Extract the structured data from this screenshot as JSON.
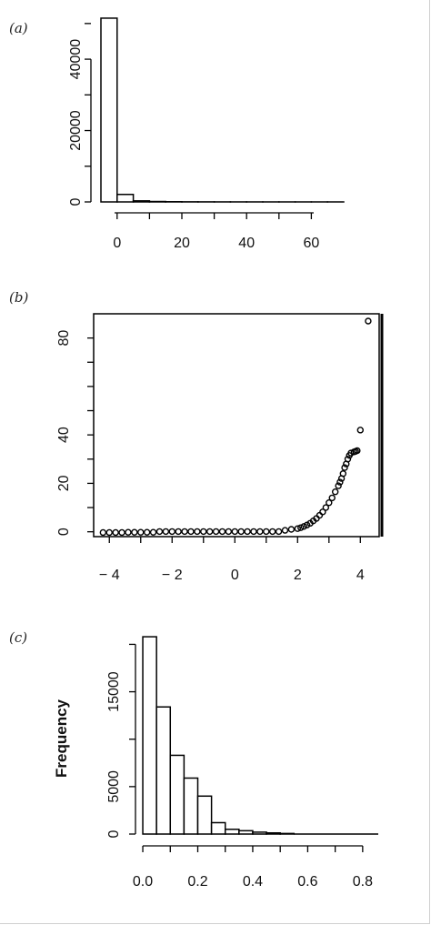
{
  "panels": [
    {
      "label": "(a)"
    },
    {
      "label": "(b)"
    },
    {
      "label": "(c)"
    }
  ],
  "chart_data": [
    {
      "type": "bar",
      "panel": "(a)",
      "title": "",
      "xlabel": "",
      "ylabel": "",
      "bin_edges": [
        -5,
        0,
        5,
        10,
        15,
        20,
        25,
        30,
        35,
        40,
        45,
        50,
        55,
        60,
        65,
        70
      ],
      "values": [
        51500,
        2100,
        300,
        120,
        60,
        30,
        20,
        10,
        8,
        5,
        3,
        2,
        1,
        1,
        1
      ],
      "xlim": [
        -5,
        70
      ],
      "ylim": [
        0,
        52000
      ],
      "xticks": [
        "0",
        "20",
        "40",
        "60"
      ],
      "xtick_values": [
        0,
        20,
        40,
        60
      ],
      "yticks": [
        "0",
        "20000",
        "40000"
      ],
      "ytick_values": [
        0,
        20000,
        40000
      ]
    },
    {
      "type": "scatter",
      "panel": "(b)",
      "title": "",
      "xlabel": "",
      "ylabel": "",
      "x": [
        -4.2,
        -4.0,
        -3.8,
        -3.6,
        -3.4,
        -3.2,
        -3.0,
        -2.8,
        -2.6,
        -2.4,
        -2.2,
        -2.0,
        -1.8,
        -1.6,
        -1.4,
        -1.2,
        -1.0,
        -0.8,
        -0.6,
        -0.4,
        -0.2,
        0.0,
        0.2,
        0.4,
        0.6,
        0.8,
        1.0,
        1.2,
        1.4,
        1.6,
        1.8,
        2.0,
        2.1,
        2.2,
        2.3,
        2.4,
        2.5,
        2.6,
        2.7,
        2.8,
        2.9,
        3.0,
        3.1,
        3.2,
        3.3,
        3.35,
        3.4,
        3.45,
        3.5,
        3.55,
        3.6,
        3.65,
        3.7,
        3.8,
        3.85,
        3.9,
        4.0,
        4.25
      ],
      "y": [
        -0.3,
        -0.3,
        -0.3,
        -0.3,
        -0.2,
        -0.2,
        -0.2,
        -0.2,
        -0.2,
        0.1,
        0.1,
        0.1,
        0.1,
        0.1,
        0.1,
        0.1,
        0.1,
        0.1,
        0.1,
        0.1,
        0.1,
        0.1,
        0.1,
        0.1,
        0.1,
        0.1,
        0.1,
        0.1,
        0.1,
        0.6,
        1.0,
        1.3,
        1.7,
        2.2,
        2.8,
        3.5,
        4.5,
        5.5,
        6.8,
        8.2,
        10.0,
        12.0,
        14.0,
        16.5,
        19.0,
        20.5,
        22.0,
        24.0,
        26.5,
        28.0,
        30.0,
        31.5,
        32.5,
        33.0,
        33.2,
        33.5,
        42.0,
        87.0
      ],
      "xlim": [
        -4.5,
        4.6
      ],
      "ylim": [
        -2,
        90
      ],
      "xticks": [
        "− 4",
        "− 2",
        "0",
        "2",
        "4"
      ],
      "xtick_values": [
        -4,
        -2,
        0,
        2,
        4
      ],
      "yticks": [
        "0",
        "20",
        "40",
        "80"
      ],
      "ytick_values": [
        0,
        20,
        40,
        80
      ]
    },
    {
      "type": "bar",
      "panel": "(c)",
      "title": "",
      "xlabel": "",
      "ylabel": "Frequency",
      "bin_edges": [
        0.0,
        0.05,
        0.1,
        0.15,
        0.2,
        0.25,
        0.3,
        0.35,
        0.4,
        0.45,
        0.5,
        0.55
      ],
      "values": [
        20800,
        13400,
        8300,
        5900,
        4000,
        1200,
        500,
        350,
        200,
        120,
        60
      ],
      "xlim": [
        -0.02,
        0.86
      ],
      "ylim": [
        0,
        21000
      ],
      "xticks": [
        "0.0",
        "0.2",
        "0.4",
        "0.6",
        "0.8"
      ],
      "xtick_values": [
        0.0,
        0.2,
        0.4,
        0.6,
        0.8
      ],
      "yticks": [
        "0",
        "5000",
        "15000"
      ],
      "ytick_values": [
        0,
        5000,
        15000
      ]
    }
  ]
}
